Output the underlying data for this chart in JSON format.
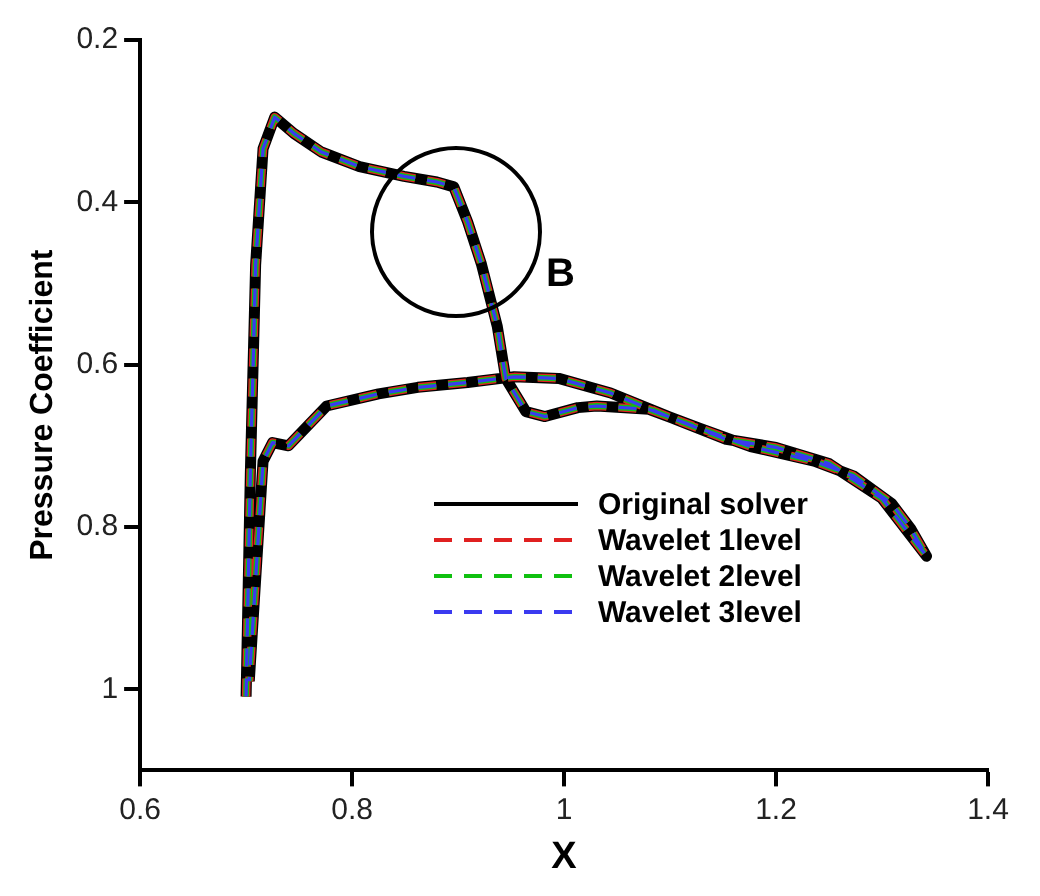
{
  "chart_data": {
    "type": "line",
    "xlabel": "X",
    "ylabel": "Pressure Coefficient",
    "x": [
      0.7,
      0.704,
      0.709,
      0.716,
      0.727,
      0.745,
      0.771,
      0.807,
      0.849,
      0.88,
      0.896,
      0.909,
      0.922,
      0.937,
      0.945,
      0.964,
      0.982,
      1.013,
      1.031,
      1.08,
      1.127,
      1.176,
      1.236,
      1.273,
      1.309,
      1.327,
      1.342,
      1.3,
      1.25,
      1.2,
      1.153,
      1.104,
      1.044,
      0.995,
      0.953,
      0.909,
      0.862,
      0.825,
      0.776,
      0.74,
      0.725,
      0.716,
      0.703
    ],
    "series": [
      {
        "name": "Original solver",
        "color": "#000000",
        "line_style": "solid",
        "values": [
          1.009,
          0.735,
          0.477,
          0.334,
          0.295,
          0.315,
          0.338,
          0.356,
          0.368,
          0.375,
          0.381,
          0.424,
          0.476,
          0.553,
          0.617,
          0.658,
          0.664,
          0.653,
          0.651,
          0.655,
          0.678,
          0.701,
          0.719,
          0.737,
          0.771,
          0.802,
          0.836,
          0.765,
          0.722,
          0.702,
          0.692,
          0.667,
          0.635,
          0.617,
          0.615,
          0.622,
          0.628,
          0.636,
          0.651,
          0.7,
          0.696,
          0.719,
          0.99
        ]
      },
      {
        "name": "Wavelet 1level",
        "color": "#e02020",
        "line_style": "dashed",
        "values": [
          1.009,
          0.735,
          0.477,
          0.334,
          0.295,
          0.315,
          0.338,
          0.356,
          0.368,
          0.375,
          0.381,
          0.424,
          0.476,
          0.553,
          0.617,
          0.658,
          0.664,
          0.653,
          0.651,
          0.655,
          0.678,
          0.701,
          0.719,
          0.737,
          0.771,
          0.802,
          0.836,
          0.765,
          0.722,
          0.702,
          0.692,
          0.667,
          0.635,
          0.617,
          0.615,
          0.622,
          0.628,
          0.636,
          0.651,
          0.7,
          0.696,
          0.719,
          0.99
        ]
      },
      {
        "name": "Wavelet 2level",
        "color": "#10c010",
        "line_style": "dashed",
        "values": [
          1.009,
          0.735,
          0.477,
          0.334,
          0.295,
          0.315,
          0.338,
          0.356,
          0.368,
          0.375,
          0.381,
          0.424,
          0.476,
          0.553,
          0.617,
          0.658,
          0.664,
          0.653,
          0.651,
          0.655,
          0.678,
          0.701,
          0.719,
          0.737,
          0.771,
          0.802,
          0.836,
          0.765,
          0.722,
          0.702,
          0.692,
          0.667,
          0.635,
          0.617,
          0.615,
          0.622,
          0.628,
          0.636,
          0.651,
          0.7,
          0.696,
          0.719,
          0.99
        ]
      },
      {
        "name": "Wavelet 3level",
        "color": "#3a3af0",
        "line_style": "dashed",
        "values": [
          1.009,
          0.735,
          0.477,
          0.334,
          0.295,
          0.315,
          0.338,
          0.356,
          0.368,
          0.375,
          0.381,
          0.424,
          0.476,
          0.553,
          0.617,
          0.658,
          0.664,
          0.653,
          0.651,
          0.655,
          0.678,
          0.701,
          0.719,
          0.737,
          0.771,
          0.802,
          0.836,
          0.765,
          0.722,
          0.702,
          0.692,
          0.667,
          0.635,
          0.617,
          0.615,
          0.622,
          0.628,
          0.636,
          0.651,
          0.7,
          0.696,
          0.719,
          0.99
        ]
      }
    ],
    "xlim": [
      0.6,
      1.4
    ],
    "xticks": [
      0.6,
      0.8,
      1,
      1.2,
      1.4
    ],
    "ylim": [
      1.1,
      0.2
    ],
    "yticks": [
      0.2,
      0.4,
      0.6,
      0.8,
      1
    ],
    "grid": false,
    "legend": "bottom right",
    "marker": "none",
    "annotations": [
      "B"
    ]
  }
}
